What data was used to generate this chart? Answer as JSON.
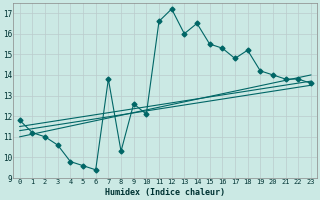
{
  "xlabel": "Humidex (Indice chaleur)",
  "ylabel": "",
  "background_color": "#cbe9e4",
  "grid_color": "#bbcccc",
  "line_color": "#006666",
  "xlim": [
    -0.5,
    23.5
  ],
  "ylim": [
    9,
    17.5
  ],
  "yticks": [
    9,
    10,
    11,
    12,
    13,
    14,
    15,
    16,
    17
  ],
  "xticks": [
    0,
    1,
    2,
    3,
    4,
    5,
    6,
    7,
    8,
    9,
    10,
    11,
    12,
    13,
    14,
    15,
    16,
    17,
    18,
    19,
    20,
    21,
    22,
    23
  ],
  "series1_x": [
    0,
    1,
    2,
    3,
    4,
    5,
    6,
    7,
    8,
    9,
    10,
    11,
    12,
    13,
    14,
    15,
    16,
    17,
    18,
    19,
    20,
    21,
    22,
    23
  ],
  "series1_y": [
    11.8,
    11.2,
    11.0,
    10.6,
    9.8,
    9.6,
    9.4,
    13.8,
    10.3,
    12.6,
    12.1,
    16.6,
    17.2,
    16.0,
    16.5,
    15.5,
    15.3,
    14.8,
    15.2,
    14.2,
    14.0,
    13.8,
    13.8,
    13.6
  ],
  "series2_x": [
    0,
    23
  ],
  "series2_y": [
    11.0,
    14.0
  ],
  "series3_x": [
    0,
    23
  ],
  "series3_y": [
    11.3,
    13.5
  ],
  "series4_x": [
    0,
    23
  ],
  "series4_y": [
    11.5,
    13.7
  ]
}
